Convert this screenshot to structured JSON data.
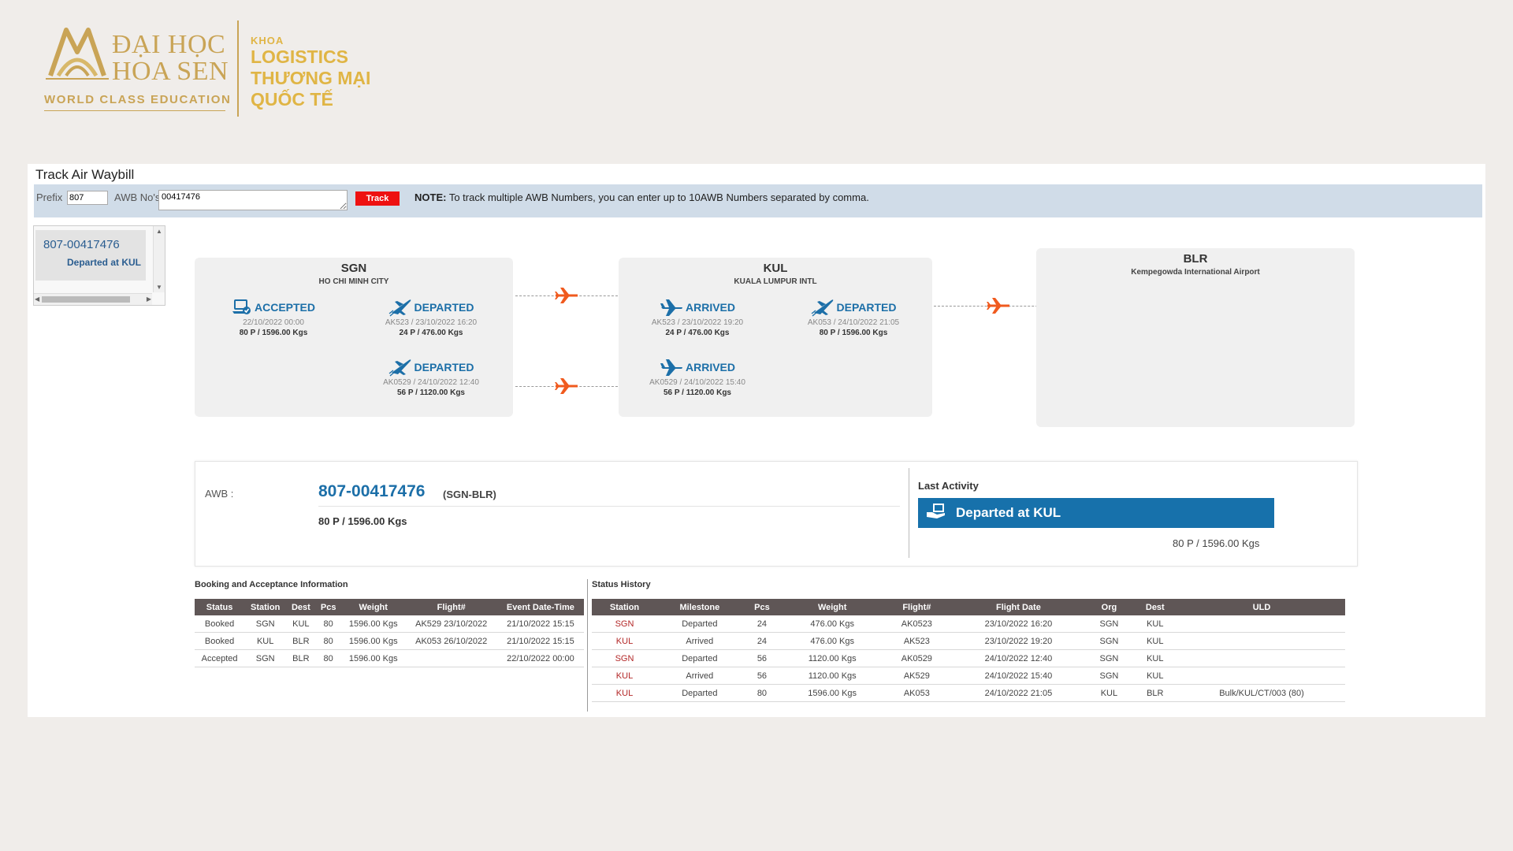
{
  "logo": {
    "name_line1": "ĐẠI HỌC",
    "name_line2": "HOA SEN",
    "tagline": "WORLD CLASS EDUCATION",
    "faculty_prefix": "KHOA",
    "faculty_line1": "LOGISTICS",
    "faculty_line2": "THƯƠNG MẠI",
    "faculty_line3": "QUỐC TẾ",
    "gold_color": "#c9a456"
  },
  "page": {
    "title": "Track Air Waybill",
    "prefix_label": "Prefix",
    "prefix_value": "807",
    "awb_label": "AWB No's",
    "awb_value": "00417476",
    "track_label": "Track",
    "note_bold": "NOTE:",
    "note_text": " To track multiple AWB Numbers, you can enter up to 10AWB Numbers separated by comma."
  },
  "sidelist": {
    "items": [
      {
        "awb": "807-00417476",
        "status": "Departed at KUL"
      }
    ]
  },
  "route": {
    "stations": [
      {
        "code": "SGN",
        "name": "HO CHI MINH CITY",
        "events": [
          {
            "type": "ACCEPTED",
            "icon": "laptop-check-icon",
            "sub": "22/10/2022 00:00",
            "qty": "80 P / 1596.00 Kgs"
          },
          {
            "type": "DEPARTED",
            "icon": "plane-takeoff-icon",
            "sub": "AK523 / 23/10/2022 16:20",
            "qty": "24 P / 476.00 Kgs"
          },
          {
            "type": "DEPARTED",
            "icon": "plane-takeoff-icon",
            "sub": "AK0529 / 24/10/2022 12:40",
            "qty": "56 P / 1120.00 Kgs"
          }
        ]
      },
      {
        "code": "KUL",
        "name": "KUALA LUMPUR INTL",
        "events": [
          {
            "type": "ARRIVED",
            "icon": "plane-landing-icon",
            "sub": "AK523 / 23/10/2022 19:20",
            "qty": "24 P / 476.00 Kgs"
          },
          {
            "type": "DEPARTED",
            "icon": "plane-takeoff-icon",
            "sub": "AK053 / 24/10/2022 21:05",
            "qty": "80 P / 1596.00 Kgs"
          },
          {
            "type": "ARRIVED",
            "icon": "plane-landing-icon",
            "sub": "AK0529 / 24/10/2022 15:40",
            "qty": "56 P / 1120.00 Kgs"
          }
        ]
      },
      {
        "code": "BLR",
        "name": "Kempegowda International Airport",
        "events": []
      }
    ],
    "accent_color": "#1c6fa8",
    "connector_plane_color": "#f05a1e"
  },
  "summary": {
    "awb_label": "AWB :",
    "awb_number": "807-00417476",
    "route": "(SGN-BLR)",
    "qty": "80 P / 1596.00 Kgs",
    "last_activity_title": "Last Activity",
    "last_activity_status": "Departed at KUL",
    "last_activity_qty": "80 P / 1596.00 Kgs",
    "last_activity_color": "#1771ab"
  },
  "booking": {
    "title": "Booking and Acceptance Information",
    "columns": [
      "Status",
      "Station",
      "Dest",
      "Pcs",
      "Weight",
      "Flight#",
      "Event Date-Time"
    ],
    "rows": [
      [
        "Booked",
        "SGN",
        "KUL",
        "80",
        "1596.00 Kgs",
        "AK529 23/10/2022",
        "21/10/2022 15:15"
      ],
      [
        "Booked",
        "KUL",
        "BLR",
        "80",
        "1596.00 Kgs",
        "AK053 26/10/2022",
        "21/10/2022 15:15"
      ],
      [
        "Accepted",
        "SGN",
        "BLR",
        "80",
        "1596.00 Kgs",
        "",
        "22/10/2022 00:00"
      ]
    ]
  },
  "history": {
    "title": "Status History",
    "columns": [
      "Station",
      "Milestone",
      "Pcs",
      "Weight",
      "Flight#",
      "Flight Date",
      "Org",
      "Dest",
      "ULD"
    ],
    "rows": [
      [
        "SGN",
        "Departed",
        "24",
        "476.00 Kgs",
        "AK0523",
        "23/10/2022 16:20",
        "SGN",
        "KUL",
        ""
      ],
      [
        "KUL",
        "Arrived",
        "24",
        "476.00 Kgs",
        "AK523",
        "23/10/2022 19:20",
        "SGN",
        "KUL",
        ""
      ],
      [
        "SGN",
        "Departed",
        "56",
        "1120.00 Kgs",
        "AK0529",
        "24/10/2022 12:40",
        "SGN",
        "KUL",
        ""
      ],
      [
        "KUL",
        "Arrived",
        "56",
        "1120.00 Kgs",
        "AK529",
        "24/10/2022 15:40",
        "SGN",
        "KUL",
        ""
      ],
      [
        "KUL",
        "Departed",
        "80",
        "1596.00 Kgs",
        "AK053",
        "24/10/2022 21:05",
        "KUL",
        "BLR",
        "Bulk/KUL/CT/003 (80)"
      ]
    ]
  }
}
